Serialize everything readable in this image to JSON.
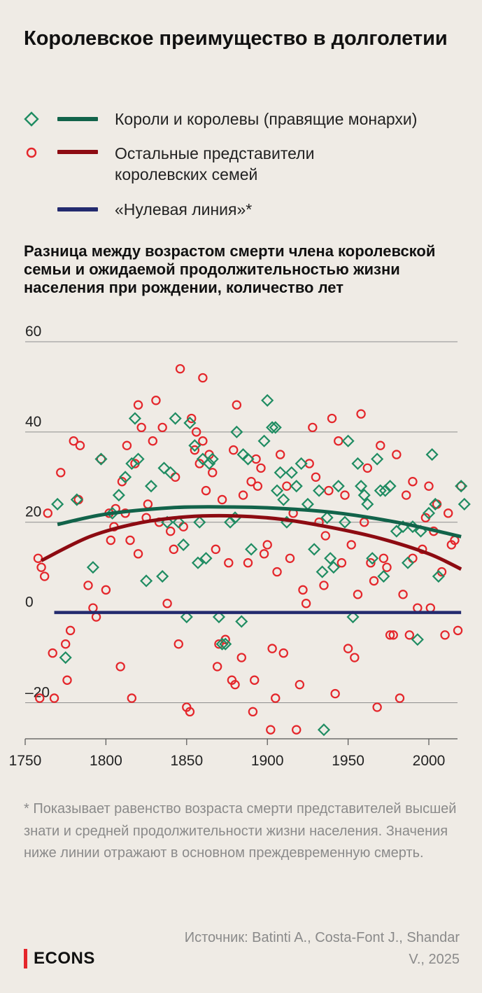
{
  "title": "Королевское преимущество в долголетии",
  "legend": [
    {
      "label": "Короли и королевы (правящие монархи)",
      "color": "#12634a",
      "marker_color": "#1f8c62",
      "marker": "diamond-icon"
    },
    {
      "label": "Остальные представители королевских семей",
      "color": "#8d0b12",
      "marker_color": "#e4262b",
      "marker": "circle-icon"
    },
    {
      "label": "«Нулевая линия»*",
      "color": "#232a6e",
      "marker": ""
    }
  ],
  "subtitle": "Разница между возрастом смерти члена королевской семьи и ожидаемой продолжительностью жизни населения при рождении, количество лет",
  "footnote": "* Показывает равенство возраста смерти представителей высшей знати и средней продолжительности жизни населения. Значения ниже линии отражают в основном преждевременную смерть.",
  "source": "Источник: Batinti A., Costa-Font J., Shandar V., 2025",
  "brand": "ECONS",
  "chart_data": {
    "type": "scatter",
    "xlim": [
      1740,
      2025
    ],
    "ylim": [
      -28,
      60
    ],
    "x_ticks": [
      1750,
      1800,
      1850,
      1900,
      1950,
      2000
    ],
    "y_ticks": [
      -20,
      0,
      20,
      40,
      60
    ],
    "y_tick_labels": [
      "–20",
      "0",
      "20",
      "40",
      "60"
    ],
    "grid": true,
    "series": [
      {
        "name": "Короли и королевы (правящие монархи)",
        "marker": "diamond",
        "color": "#1f8c62",
        "points": [
          [
            1770,
            24
          ],
          [
            1782,
            25
          ],
          [
            1792,
            10
          ],
          [
            1797,
            34
          ],
          [
            1804,
            22
          ],
          [
            1808,
            26
          ],
          [
            1812,
            30
          ],
          [
            1816,
            33
          ],
          [
            1818,
            43
          ],
          [
            1820,
            34
          ],
          [
            1825,
            7
          ],
          [
            1828,
            28
          ],
          [
            1836,
            32
          ],
          [
            1838,
            20
          ],
          [
            1840,
            31
          ],
          [
            1843,
            43
          ],
          [
            1845,
            20
          ],
          [
            1848,
            15
          ],
          [
            1850,
            -1
          ],
          [
            1852,
            42
          ],
          [
            1855,
            37
          ],
          [
            1857,
            11
          ],
          [
            1858,
            20
          ],
          [
            1860,
            34
          ],
          [
            1862,
            12
          ],
          [
            1864,
            33
          ],
          [
            1866,
            34
          ],
          [
            1870,
            -1
          ],
          [
            1872,
            -7
          ],
          [
            1874,
            -7
          ],
          [
            1877,
            20
          ],
          [
            1880,
            21
          ],
          [
            1881,
            40
          ],
          [
            1884,
            -2
          ],
          [
            1888,
            34
          ],
          [
            1890,
            14
          ],
          [
            1898,
            38
          ],
          [
            1900,
            47
          ],
          [
            1903,
            41
          ],
          [
            1905,
            41
          ],
          [
            1906,
            27
          ],
          [
            1908,
            31
          ],
          [
            1910,
            25
          ],
          [
            1912,
            20
          ],
          [
            1915,
            31
          ],
          [
            1921,
            33
          ],
          [
            1925,
            24
          ],
          [
            1929,
            14
          ],
          [
            1932,
            27
          ],
          [
            1934,
            9
          ],
          [
            1935,
            -26
          ],
          [
            1937,
            21
          ],
          [
            1939,
            12
          ],
          [
            1941,
            10
          ],
          [
            1944,
            28
          ],
          [
            1948,
            20
          ],
          [
            1950,
            38
          ],
          [
            1953,
            -1
          ],
          [
            1956,
            33
          ],
          [
            1958,
            28
          ],
          [
            1960,
            26
          ],
          [
            1962,
            24
          ],
          [
            1965,
            12
          ],
          [
            1968,
            34
          ],
          [
            1970,
            27
          ],
          [
            1972,
            8
          ],
          [
            1973,
            27
          ],
          [
            1976,
            28
          ],
          [
            1980,
            18
          ],
          [
            1984,
            19
          ],
          [
            1987,
            11
          ],
          [
            1990,
            19
          ],
          [
            1993,
            -6
          ],
          [
            1995,
            18
          ],
          [
            2000,
            22
          ],
          [
            2002,
            35
          ],
          [
            2004,
            24
          ],
          [
            2006,
            8
          ],
          [
            2020,
            28
          ],
          [
            2022,
            24
          ],
          [
            1775,
            -10
          ],
          [
            1835,
            8
          ],
          [
            1918,
            28
          ],
          [
            1885,
            35
          ]
        ]
      },
      {
        "name": "Остальные представители королевских семей",
        "marker": "circle",
        "color": "#e4262b",
        "points": [
          [
            1758,
            12
          ],
          [
            1759,
            -19
          ],
          [
            1760,
            10
          ],
          [
            1762,
            8
          ],
          [
            1764,
            22
          ],
          [
            1767,
            -9
          ],
          [
            1768,
            -19
          ],
          [
            1772,
            31
          ],
          [
            1775,
            -7
          ],
          [
            1776,
            -15
          ],
          [
            1778,
            -4
          ],
          [
            1780,
            38
          ],
          [
            1783,
            25
          ],
          [
            1784,
            37
          ],
          [
            1789,
            6
          ],
          [
            1792,
            1
          ],
          [
            1794,
            -1
          ],
          [
            1797,
            34
          ],
          [
            1800,
            5
          ],
          [
            1802,
            22
          ],
          [
            1803,
            16
          ],
          [
            1805,
            19
          ],
          [
            1806,
            23
          ],
          [
            1809,
            -12
          ],
          [
            1810,
            29
          ],
          [
            1812,
            22
          ],
          [
            1813,
            37
          ],
          [
            1815,
            16
          ],
          [
            1816,
            -19
          ],
          [
            1818,
            33
          ],
          [
            1820,
            13
          ],
          [
            1820,
            46
          ],
          [
            1822,
            41
          ],
          [
            1825,
            21
          ],
          [
            1826,
            24
          ],
          [
            1829,
            38
          ],
          [
            1831,
            47
          ],
          [
            1833,
            20
          ],
          [
            1835,
            41
          ],
          [
            1838,
            2
          ],
          [
            1840,
            18
          ],
          [
            1842,
            14
          ],
          [
            1843,
            30
          ],
          [
            1845,
            -7
          ],
          [
            1846,
            54
          ],
          [
            1848,
            19
          ],
          [
            1850,
            -21
          ],
          [
            1852,
            -22
          ],
          [
            1853,
            43
          ],
          [
            1855,
            36
          ],
          [
            1856,
            40
          ],
          [
            1858,
            33
          ],
          [
            1860,
            52
          ],
          [
            1860,
            38
          ],
          [
            1862,
            27
          ],
          [
            1864,
            35
          ],
          [
            1866,
            31
          ],
          [
            1868,
            14
          ],
          [
            1869,
            -12
          ],
          [
            1870,
            -7
          ],
          [
            1872,
            25
          ],
          [
            1874,
            -6
          ],
          [
            1876,
            11
          ],
          [
            1878,
            -15
          ],
          [
            1879,
            36
          ],
          [
            1880,
            -16
          ],
          [
            1881,
            46
          ],
          [
            1884,
            -10
          ],
          [
            1885,
            26
          ],
          [
            1888,
            11
          ],
          [
            1890,
            29
          ],
          [
            1891,
            -22
          ],
          [
            1892,
            -15
          ],
          [
            1894,
            28
          ],
          [
            1896,
            32
          ],
          [
            1898,
            13
          ],
          [
            1900,
            15
          ],
          [
            1902,
            -26
          ],
          [
            1903,
            -8
          ],
          [
            1905,
            -19
          ],
          [
            1906,
            9
          ],
          [
            1908,
            35
          ],
          [
            1910,
            -9
          ],
          [
            1912,
            28
          ],
          [
            1914,
            12
          ],
          [
            1916,
            22
          ],
          [
            1918,
            -26
          ],
          [
            1920,
            -16
          ],
          [
            1922,
            5
          ],
          [
            1924,
            2
          ],
          [
            1926,
            33
          ],
          [
            1928,
            41
          ],
          [
            1930,
            30
          ],
          [
            1932,
            20
          ],
          [
            1935,
            6
          ],
          [
            1936,
            17
          ],
          [
            1938,
            27
          ],
          [
            1940,
            43
          ],
          [
            1942,
            -18
          ],
          [
            1944,
            38
          ],
          [
            1946,
            11
          ],
          [
            1948,
            26
          ],
          [
            1950,
            -8
          ],
          [
            1952,
            15
          ],
          [
            1954,
            -10
          ],
          [
            1956,
            4
          ],
          [
            1958,
            44
          ],
          [
            1960,
            20
          ],
          [
            1962,
            32
          ],
          [
            1964,
            11
          ],
          [
            1966,
            7
          ],
          [
            1968,
            -21
          ],
          [
            1970,
            37
          ],
          [
            1972,
            12
          ],
          [
            1974,
            10
          ],
          [
            1976,
            -5
          ],
          [
            1978,
            -5
          ],
          [
            1980,
            35
          ],
          [
            1982,
            -19
          ],
          [
            1984,
            4
          ],
          [
            1986,
            26
          ],
          [
            1988,
            -5
          ],
          [
            1990,
            12
          ],
          [
            1993,
            1
          ],
          [
            1996,
            14
          ],
          [
            1998,
            21
          ],
          [
            2000,
            28
          ],
          [
            2001,
            1
          ],
          [
            2003,
            18
          ],
          [
            2005,
            24
          ],
          [
            2008,
            9
          ],
          [
            2010,
            -5
          ],
          [
            2012,
            22
          ],
          [
            2014,
            15
          ],
          [
            2016,
            16
          ],
          [
            2018,
            -4
          ],
          [
            2020,
            28
          ],
          [
            1990,
            29
          ],
          [
            1893,
            34
          ]
        ]
      },
      {
        "name": "Короли и королевы (правящие монархи) — тренд",
        "kind": "trend",
        "color": "#12634a",
        "points": [
          [
            1770,
            19.5
          ],
          [
            1800,
            21.8
          ],
          [
            1840,
            23.2
          ],
          [
            1870,
            23.4
          ],
          [
            1900,
            23.2
          ],
          [
            1940,
            22.2
          ],
          [
            1980,
            20
          ],
          [
            2020,
            16.8
          ]
        ]
      },
      {
        "name": "Остальные представители королевских семей — тренд",
        "kind": "trend",
        "color": "#8d0b12",
        "points": [
          [
            1760,
            11.5
          ],
          [
            1790,
            16.8
          ],
          [
            1820,
            19.8
          ],
          [
            1850,
            21.2
          ],
          [
            1880,
            21.4
          ],
          [
            1910,
            20.6
          ],
          [
            1940,
            18.8
          ],
          [
            1970,
            16.4
          ],
          [
            2000,
            13
          ],
          [
            2020,
            9.6
          ]
        ]
      },
      {
        "name": "«Нулевая линия»*",
        "kind": "zero-line",
        "color": "#232a6e",
        "points": [
          [
            1768,
            0
          ],
          [
            2020,
            0
          ]
        ]
      }
    ]
  }
}
